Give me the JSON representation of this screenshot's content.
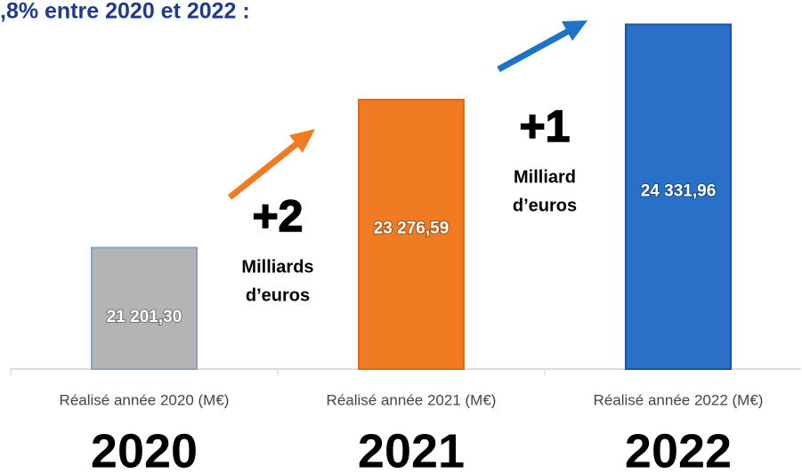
{
  "chart_data": {
    "type": "bar",
    "title": ",8% entre 2020 et 2022 :",
    "categories": [
      "Réalisé année 2020 (M€)",
      "Réalisé année 2021 (M€)",
      "Réalisé année 2022 (M€)"
    ],
    "year_labels": [
      "2020",
      "2021",
      "2022"
    ],
    "values": [
      21201.3,
      23276.59,
      24331.96
    ],
    "value_labels": [
      "21 201,30",
      "23 276,59",
      "24 331,96"
    ],
    "colors": [
      "#b4b4b4",
      "#f07b22",
      "#2870c8"
    ],
    "ylim": [
      19500,
      24500
    ],
    "annotations": [
      {
        "big": "+2",
        "text": [
          "Milliards",
          "d’euros"
        ]
      },
      {
        "big": "+1",
        "text": [
          "Milliard",
          "d’euros"
        ]
      }
    ]
  }
}
